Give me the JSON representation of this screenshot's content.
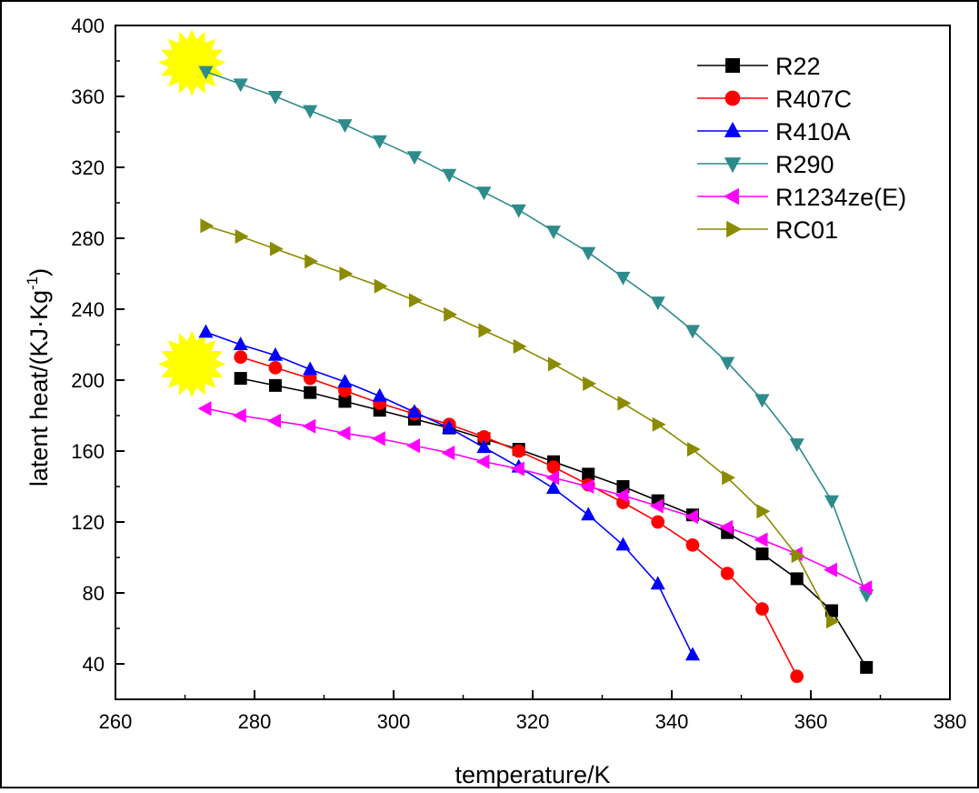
{
  "chart_data": {
    "type": "line",
    "xlabel": "temperature/K",
    "ylabel_main": "latent heat/(KJ·Kg",
    "ylabel_sup": "-1",
    "ylabel_close": ")",
    "xlim": [
      260,
      380
    ],
    "ylim": [
      20,
      400
    ],
    "xticks": [
      "260",
      "280",
      "300",
      "320",
      "340",
      "360",
      "380"
    ],
    "yticks": [
      "40",
      "80",
      "120",
      "160",
      "200",
      "240",
      "280",
      "320",
      "360",
      "400"
    ],
    "legend_position": "top-right",
    "grid": false,
    "series": [
      {
        "name": "R22",
        "color": "#000000",
        "marker": "square",
        "x": [
          278,
          283,
          288,
          293,
          298,
          303,
          308,
          313,
          318,
          323,
          328,
          333,
          338,
          343,
          348,
          353,
          358,
          363,
          368
        ],
        "y": [
          201,
          197,
          193,
          188,
          183,
          178,
          173,
          167,
          161,
          154,
          147,
          140,
          132,
          124,
          114,
          102,
          88,
          70,
          38
        ]
      },
      {
        "name": "R407C",
        "color": "#ff0000",
        "marker": "circle",
        "x": [
          278,
          283,
          288,
          293,
          298,
          303,
          308,
          313,
          318,
          323,
          328,
          333,
          338,
          343,
          348,
          353,
          358
        ],
        "y": [
          213,
          207,
          201,
          194,
          187,
          181,
          175,
          168,
          160,
          151,
          141,
          131,
          120,
          107,
          91,
          71,
          33
        ]
      },
      {
        "name": "R410A",
        "color": "#0000ff",
        "marker": "triangle-up",
        "x": [
          273,
          278,
          283,
          288,
          293,
          298,
          303,
          308,
          313,
          318,
          323,
          328,
          333,
          338,
          343
        ],
        "y": [
          227,
          220,
          214,
          206,
          199,
          191,
          182,
          173,
          162,
          151,
          139,
          124,
          107,
          85,
          45
        ]
      },
      {
        "name": "R290",
        "color": "#2e8b8b",
        "marker": "triangle-down",
        "x": [
          273,
          278,
          283,
          288,
          293,
          298,
          303,
          308,
          313,
          318,
          323,
          328,
          333,
          338,
          343,
          348,
          353,
          358,
          363,
          368
        ],
        "y": [
          374,
          367,
          360,
          352,
          344,
          335,
          326,
          316,
          306,
          296,
          284,
          272,
          258,
          244,
          228,
          210,
          189,
          164,
          132,
          79
        ]
      },
      {
        "name": "R1234ze(E)",
        "color": "#ff00ff",
        "marker": "triangle-left",
        "x": [
          273,
          278,
          283,
          288,
          293,
          298,
          303,
          308,
          313,
          318,
          323,
          328,
          333,
          338,
          343,
          348,
          353,
          358,
          363,
          368
        ],
        "y": [
          184,
          180,
          177,
          174,
          170,
          167,
          163,
          159,
          154,
          150,
          145,
          140,
          135,
          129,
          123,
          117,
          110,
          102,
          93,
          83
        ]
      },
      {
        "name": "RC01",
        "color": "#8b8b00",
        "marker": "triangle-right",
        "x": [
          273,
          278,
          283,
          288,
          293,
          298,
          303,
          308,
          313,
          318,
          323,
          328,
          333,
          338,
          343,
          348,
          353,
          358,
          363
        ],
        "y": [
          287,
          281,
          274,
          267,
          260,
          253,
          245,
          237,
          228,
          219,
          209,
          198,
          187,
          175,
          161,
          145,
          126,
          101,
          64
        ]
      }
    ],
    "annotations": [
      {
        "type": "starburst",
        "color": "#ffff00",
        "x": 271,
        "y": 379
      },
      {
        "type": "starburst",
        "color": "#ffff00",
        "x": 271,
        "y": 209
      }
    ]
  }
}
